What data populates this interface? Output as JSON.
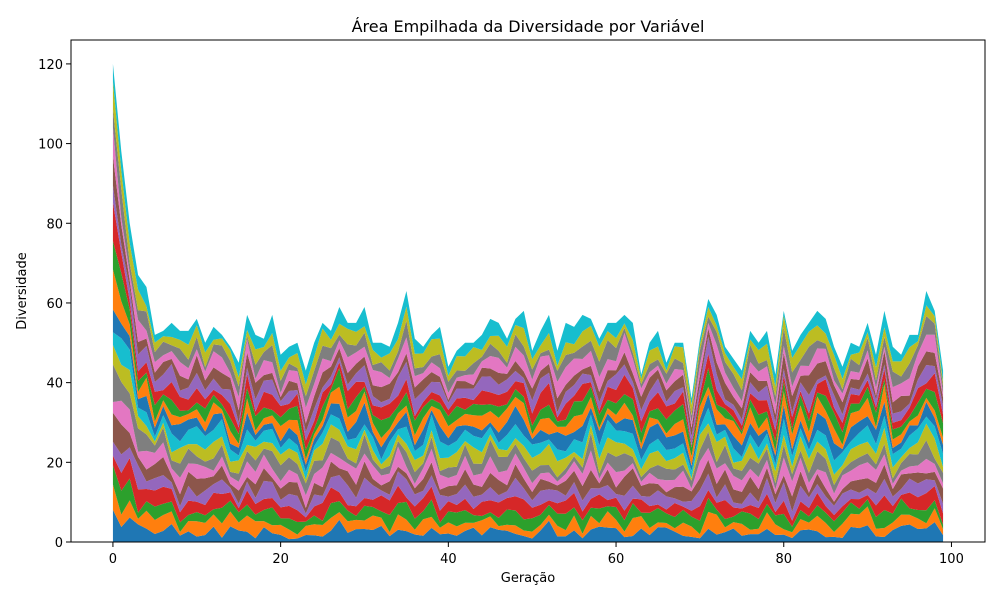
{
  "chart_data": {
    "type": "area",
    "stacked": true,
    "title": "Área Empilhada da Diversidade por Variável",
    "xlabel": "Geração",
    "ylabel": "Diversidade",
    "xlim": [
      -5,
      104
    ],
    "ylim": [
      0,
      126
    ],
    "xticks": [
      0,
      20,
      40,
      60,
      80,
      100
    ],
    "yticks": [
      0,
      20,
      40,
      60,
      80,
      100,
      120
    ],
    "grid": false,
    "legend": "none",
    "colors": [
      "#1f77b4",
      "#ff7f0e",
      "#2ca02c",
      "#d62728",
      "#9467bd",
      "#8c564b",
      "#e377c2",
      "#7f7f7f",
      "#bcbd22",
      "#17becf"
    ],
    "n_series_repeat": 2,
    "totals": [
      120,
      98,
      80,
      67,
      64,
      52,
      53,
      55,
      53,
      53,
      56,
      50,
      54,
      52,
      49,
      45,
      57,
      52,
      51,
      57,
      47,
      49,
      50,
      43,
      50,
      55,
      53,
      59,
      55,
      55,
      59,
      50,
      50,
      49,
      55,
      63,
      51,
      49,
      52,
      54,
      44,
      48,
      50,
      50,
      52,
      56,
      55,
      51,
      56,
      58,
      48,
      53,
      57,
      48,
      55,
      54,
      57,
      56,
      51,
      55,
      55,
      57,
      55,
      42,
      50,
      53,
      45,
      50,
      50,
      36,
      51,
      61,
      57,
      49,
      46,
      43,
      53,
      50,
      53,
      42,
      58,
      48,
      52,
      55,
      58,
      56,
      49,
      44,
      50,
      49,
      55,
      47,
      58,
      49,
      47,
      52,
      52,
      63,
      58,
      43
    ]
  }
}
